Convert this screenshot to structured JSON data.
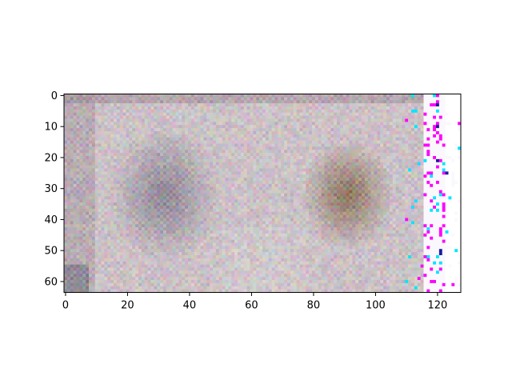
{
  "chart_data": {
    "type": "heatmap",
    "title": "",
    "xlabel": "",
    "ylabel": "",
    "image_size": {
      "columns": 128,
      "rows": 64
    },
    "xlim": [
      -0.5,
      127.5
    ],
    "ylim": [
      63.5,
      -0.5
    ],
    "y_axis_inverted": true,
    "x_ticks": [
      0,
      20,
      40,
      60,
      80,
      100,
      120
    ],
    "y_ticks": [
      0,
      10,
      20,
      30,
      40,
      50,
      60
    ],
    "x_tick_labels": [
      "0",
      "20",
      "40",
      "60",
      "80",
      "100",
      "120"
    ],
    "y_tick_labels": [
      "0",
      "10",
      "20",
      "30",
      "40",
      "50",
      "60"
    ],
    "grid": false,
    "legend": "none",
    "content": "noisy low-resolution RGB image: greyish pinkish background, darker blue/green blob around x 15-50, brown/olive blob around x 75-105, sparse magenta/cyan speckles near x 115-125",
    "regions": [
      {
        "name": "left-blob",
        "x_range": [
          15,
          50
        ],
        "y_range": [
          8,
          58
        ],
        "color": "#6e6a7c"
      },
      {
        "name": "right-blob",
        "x_range": [
          75,
          105
        ],
        "y_range": [
          10,
          50
        ],
        "color": "#7a5a40"
      },
      {
        "name": "right-edge-speckles",
        "x_range": [
          113,
          125
        ],
        "y_range": [
          0,
          63
        ],
        "colors": [
          "#ff00ff",
          "#00ffff",
          "#0000cc",
          "#ffff00"
        ]
      }
    ],
    "colors": {
      "background_base": "#c9bec3",
      "left_blob": "#6e6a7c",
      "right_blob": "#7a5a40",
      "speckle_magenta": "#ff00ff",
      "speckle_cyan": "#00e6ff",
      "speckle_blue": "#1a1aa0"
    }
  }
}
